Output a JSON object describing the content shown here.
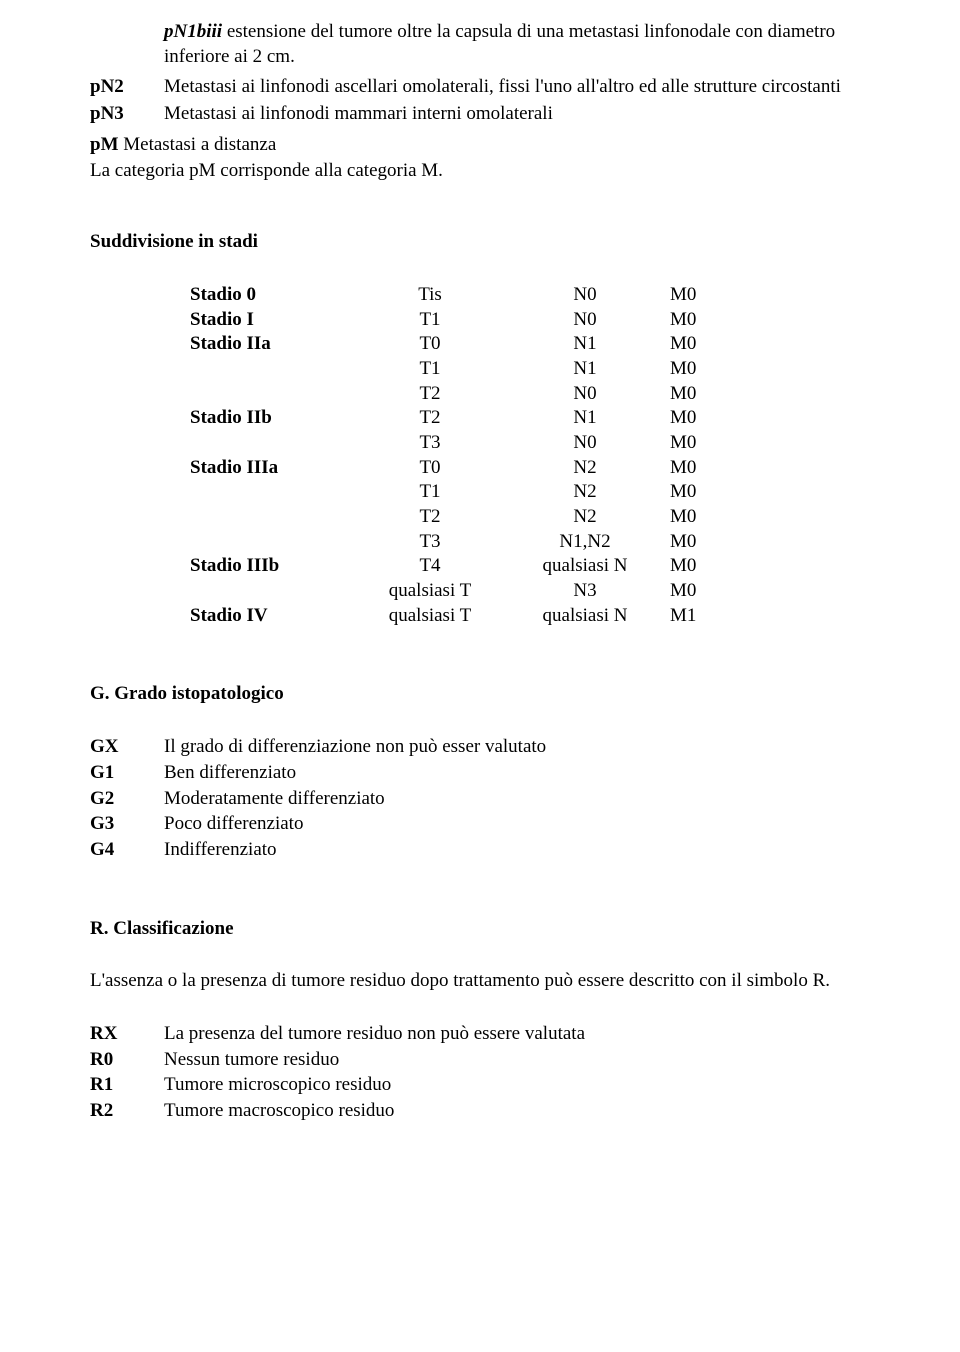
{
  "pn1biii": {
    "label": "pN1biii",
    "text": "estensione del tumore oltre la capsula di una metastasi linfonodale con diametro inferiore ai 2 cm."
  },
  "pN2": {
    "label": "pN2",
    "text": "Metastasi ai linfonodi ascellari omolaterali, fissi l'uno all'altro ed alle strutture circostanti"
  },
  "pN3": {
    "label": "pN3",
    "text": "Metastasi ai linfonodi mammari interni omolaterali"
  },
  "pM_line1_bold": "pM",
  "pM_line1_rest": " Metastasi a distanza",
  "pM_line2": "La categoria pM corrisponde alla categoria M.",
  "suddivisione_title": "Suddivisione in stadi",
  "stage_rows": [
    {
      "s": "Stadio 0",
      "t": "Tis",
      "n": "N0",
      "m": "M0"
    },
    {
      "s": "Stadio I",
      "t": "T1",
      "n": "N0",
      "m": "M0"
    },
    {
      "s": "Stadio IIa",
      "t": "T0",
      "n": "N1",
      "m": "M0"
    },
    {
      "s": "",
      "t": "T1",
      "n": "N1",
      "m": "M0"
    },
    {
      "s": "",
      "t": "T2",
      "n": "N0",
      "m": "M0"
    },
    {
      "s": "Stadio IIb",
      "t": "T2",
      "n": "N1",
      "m": "M0"
    },
    {
      "s": "",
      "t": "T3",
      "n": "N0",
      "m": "M0"
    },
    {
      "s": "Stadio IIIa",
      "t": "T0",
      "n": "N2",
      "m": "M0"
    },
    {
      "s": "",
      "t": "T1",
      "n": "N2",
      "m": "M0"
    },
    {
      "s": "",
      "t": "T2",
      "n": "N2",
      "m": "M0"
    },
    {
      "s": "",
      "t": "T3",
      "n": "N1,N2",
      "m": "M0"
    },
    {
      "s": "Stadio IIIb",
      "t": "T4",
      "n": "qualsiasi N",
      "m": "M0"
    },
    {
      "s": "",
      "t": "qualsiasi T",
      "n": "N3",
      "m": "M0"
    },
    {
      "s": "Stadio IV",
      "t": "qualsiasi T",
      "n": "qualsiasi N",
      "m": "M1"
    }
  ],
  "grado_title": "G. Grado istopatologico",
  "grades": [
    {
      "label": "GX",
      "text": "Il grado di differenziazione non può esser valutato"
    },
    {
      "label": "G1",
      "text": "Ben differenziato"
    },
    {
      "label": "G2",
      "text": "Moderatamente differenziato"
    },
    {
      "label": "G3",
      "text": "Poco differenziato"
    },
    {
      "label": "G4",
      "text": "Indifferenziato"
    }
  ],
  "r_title": "R. Classificazione",
  "r_para": "L'assenza o la presenza di tumore residuo dopo trattamento può essere descritto con il simbolo R.",
  "r_rows": [
    {
      "label": "RX",
      "text": "La presenza del tumore residuo non può essere valutata"
    },
    {
      "label": "R0",
      "text": "Nessun tumore residuo"
    },
    {
      "label": "R1",
      "text": "Tumore microscopico residuo"
    },
    {
      "label": "R2",
      "text": "Tumore macroscopico residuo"
    }
  ]
}
